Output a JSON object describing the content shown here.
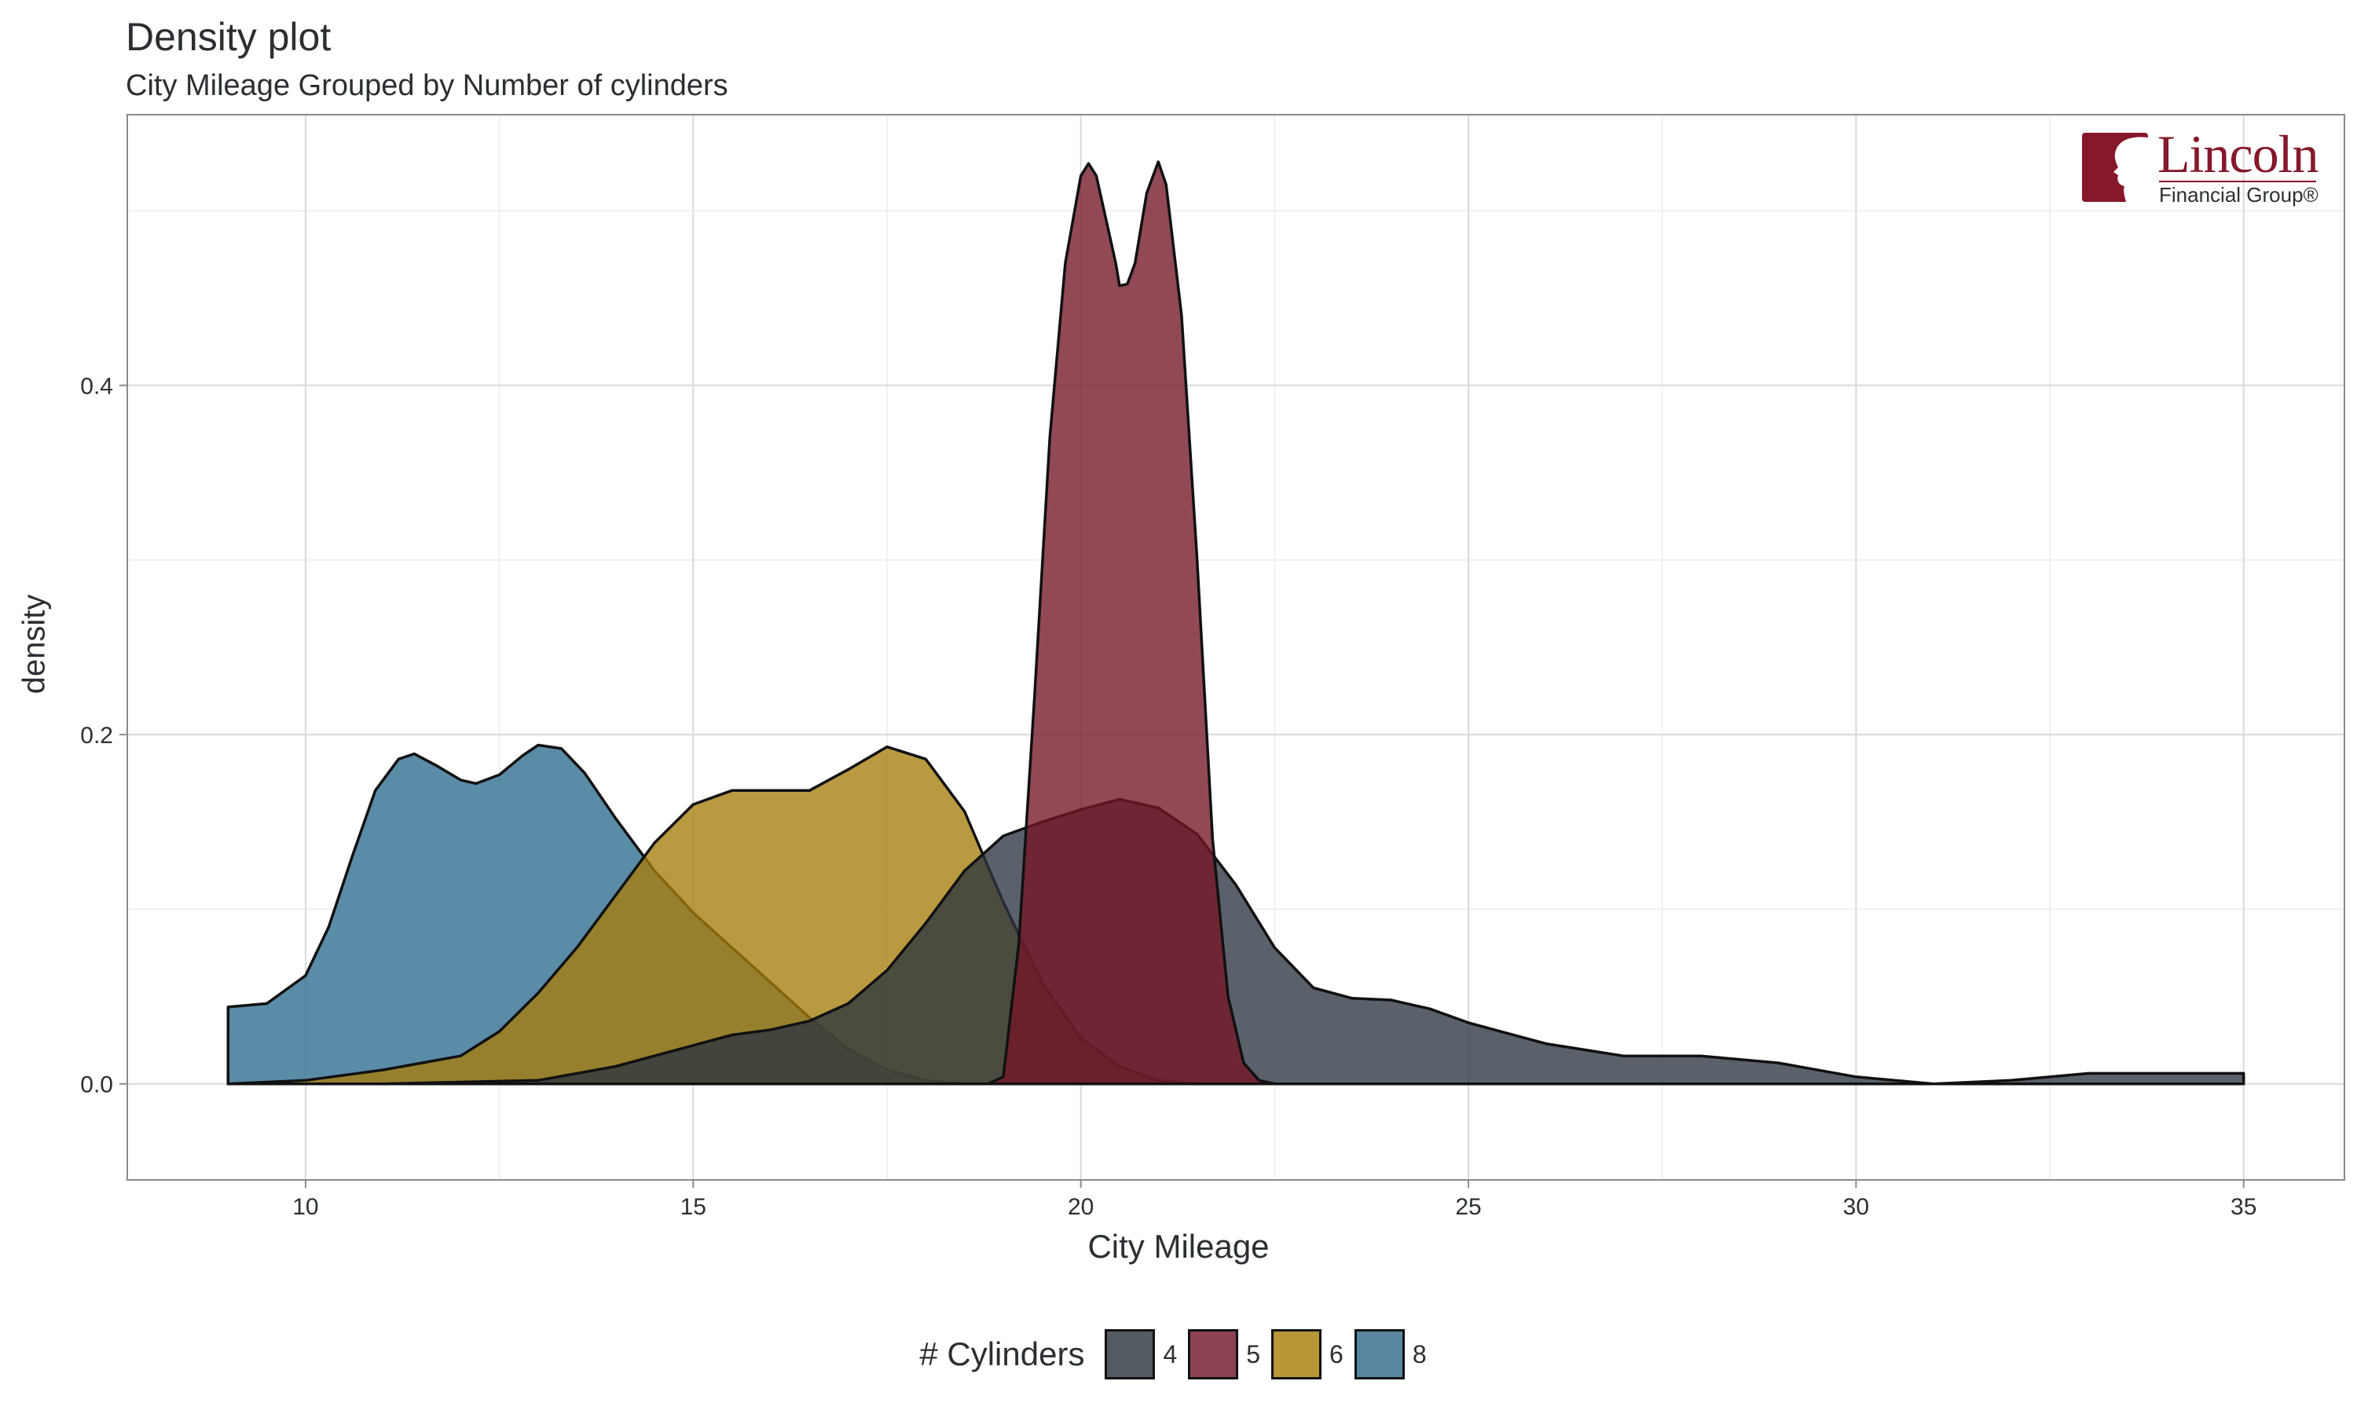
{
  "chart_data": {
    "type": "area",
    "title": "Density plot",
    "subtitle": "City Mileage Grouped by Number of cylinders",
    "xlabel": "City Mileage",
    "ylabel": "density",
    "xlim": [
      7.7,
      36.3
    ],
    "ylim": [
      -0.055,
      0.555
    ],
    "xticks": [
      10,
      15,
      20,
      25,
      30,
      35
    ],
    "yticks": [
      0.0,
      0.2,
      0.4
    ],
    "grid": true,
    "legend_title": "# Cylinders",
    "legend_position": "bottom",
    "series": [
      {
        "name": "8",
        "color": "#2c6a8e",
        "points": [
          [
            9,
            0.044
          ],
          [
            9.5,
            0.046
          ],
          [
            10,
            0.062
          ],
          [
            10.3,
            0.09
          ],
          [
            10.6,
            0.13
          ],
          [
            10.9,
            0.168
          ],
          [
            11.2,
            0.186
          ],
          [
            11.4,
            0.189
          ],
          [
            11.7,
            0.182
          ],
          [
            12.0,
            0.174
          ],
          [
            12.2,
            0.172
          ],
          [
            12.5,
            0.177
          ],
          [
            12.8,
            0.188
          ],
          [
            13.0,
            0.194
          ],
          [
            13.3,
            0.192
          ],
          [
            13.6,
            0.178
          ],
          [
            14.0,
            0.152
          ],
          [
            14.5,
            0.122
          ],
          [
            15.0,
            0.098
          ],
          [
            15.5,
            0.078
          ],
          [
            16.0,
            0.058
          ],
          [
            16.5,
            0.038
          ],
          [
            17.0,
            0.02
          ],
          [
            17.5,
            0.008
          ],
          [
            18.0,
            0.002
          ],
          [
            18.5,
            0.0
          ]
        ]
      },
      {
        "name": "6",
        "color": "#a67d0a",
        "points": [
          [
            9,
            0.0
          ],
          [
            10,
            0.002
          ],
          [
            11,
            0.008
          ],
          [
            12,
            0.016
          ],
          [
            12.5,
            0.03
          ],
          [
            13.0,
            0.052
          ],
          [
            13.5,
            0.078
          ],
          [
            14.0,
            0.108
          ],
          [
            14.5,
            0.138
          ],
          [
            15.0,
            0.16
          ],
          [
            15.5,
            0.168
          ],
          [
            16.0,
            0.168
          ],
          [
            16.5,
            0.168
          ],
          [
            17.0,
            0.18
          ],
          [
            17.5,
            0.193
          ],
          [
            18.0,
            0.186
          ],
          [
            18.5,
            0.156
          ],
          [
            19.0,
            0.104
          ],
          [
            19.5,
            0.058
          ],
          [
            20.0,
            0.026
          ],
          [
            20.5,
            0.01
          ],
          [
            21.0,
            0.002
          ],
          [
            21.5,
            0.0
          ]
        ]
      },
      {
        "name": "4",
        "color": "#2b3540",
        "points": [
          [
            9,
            0.0
          ],
          [
            11,
            0.0
          ],
          [
            13,
            0.002
          ],
          [
            14,
            0.01
          ],
          [
            15,
            0.022
          ],
          [
            15.5,
            0.028
          ],
          [
            16,
            0.031
          ],
          [
            16.5,
            0.036
          ],
          [
            17,
            0.046
          ],
          [
            17.5,
            0.065
          ],
          [
            18,
            0.092
          ],
          [
            18.5,
            0.122
          ],
          [
            19,
            0.142
          ],
          [
            19.5,
            0.15
          ],
          [
            20,
            0.157
          ],
          [
            20.5,
            0.163
          ],
          [
            21,
            0.158
          ],
          [
            21.5,
            0.143
          ],
          [
            22,
            0.114
          ],
          [
            22.5,
            0.078
          ],
          [
            23,
            0.055
          ],
          [
            23.5,
            0.049
          ],
          [
            24,
            0.048
          ],
          [
            24.5,
            0.043
          ],
          [
            25,
            0.035
          ],
          [
            26,
            0.023
          ],
          [
            27,
            0.016
          ],
          [
            28,
            0.016
          ],
          [
            29,
            0.012
          ],
          [
            30,
            0.004
          ],
          [
            31,
            0.0
          ],
          [
            32,
            0.002
          ],
          [
            33,
            0.006
          ],
          [
            34,
            0.006
          ],
          [
            35,
            0.006
          ]
        ]
      },
      {
        "name": "5",
        "color": "#731626",
        "points": [
          [
            18.8,
            0.0
          ],
          [
            19.0,
            0.004
          ],
          [
            19.2,
            0.08
          ],
          [
            19.4,
            0.22
          ],
          [
            19.6,
            0.37
          ],
          [
            19.8,
            0.47
          ],
          [
            20.0,
            0.52
          ],
          [
            20.1,
            0.527
          ],
          [
            20.2,
            0.52
          ],
          [
            20.3,
            0.5
          ],
          [
            20.45,
            0.47
          ],
          [
            20.5,
            0.457
          ],
          [
            20.6,
            0.458
          ],
          [
            20.7,
            0.47
          ],
          [
            20.85,
            0.51
          ],
          [
            21.0,
            0.528
          ],
          [
            21.1,
            0.515
          ],
          [
            21.3,
            0.44
          ],
          [
            21.5,
            0.3
          ],
          [
            21.7,
            0.14
          ],
          [
            21.9,
            0.05
          ],
          [
            22.1,
            0.012
          ],
          [
            22.3,
            0.002
          ],
          [
            22.5,
            0.0
          ]
        ]
      }
    ]
  },
  "legend": {
    "title": "# Cylinders",
    "items": [
      {
        "label": "4",
        "color": "#535a61"
      },
      {
        "label": "5",
        "color": "#8c4250"
      },
      {
        "label": "6",
        "color": "#b89636"
      },
      {
        "label": "8",
        "color": "#58879f"
      }
    ]
  },
  "logo": {
    "wordmark": "Lincoln",
    "sub": "Financial Group®",
    "color": "#85182a"
  }
}
